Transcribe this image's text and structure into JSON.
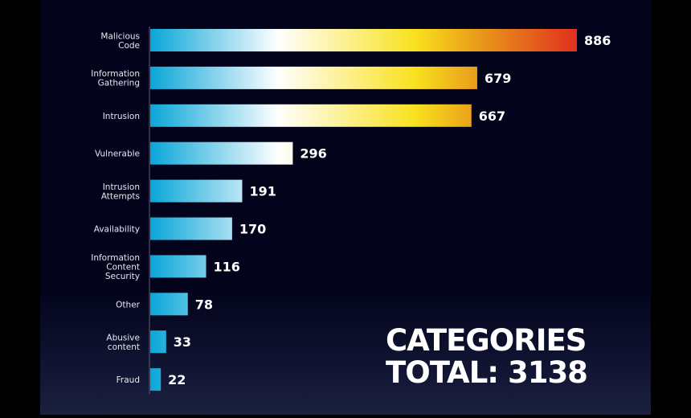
{
  "chart_data": {
    "type": "bar",
    "orientation": "horizontal",
    "categories": [
      "Malicious Code",
      "Information Gathering",
      "Intrusion",
      "Vulnerable",
      "Intrusion Attempts",
      "Availability",
      "Information Content Security",
      "Other",
      "Abusive content",
      "Fraud"
    ],
    "category_lines": [
      [
        "Malicious",
        "Code"
      ],
      [
        "Information",
        "Gathering"
      ],
      [
        "Intrusion"
      ],
      [
        "Vulnerable"
      ],
      [
        "Intrusion",
        "Attempts"
      ],
      [
        "Availability"
      ],
      [
        "Information",
        "Content",
        "Security"
      ],
      [
        "Other"
      ],
      [
        "Abusive",
        "content"
      ],
      [
        "Fraud"
      ]
    ],
    "values": [
      886,
      679,
      667,
      296,
      191,
      170,
      116,
      78,
      33,
      22
    ],
    "xlim": [
      0,
      886
    ],
    "grid": false,
    "gradient_colors": [
      "#0aa6d8",
      "#ffffff",
      "#f9e11e",
      "#e8961a",
      "#e0301e"
    ]
  },
  "annotation": {
    "line1": "CATEGORIES",
    "line2": "TOTAL: 3138"
  }
}
